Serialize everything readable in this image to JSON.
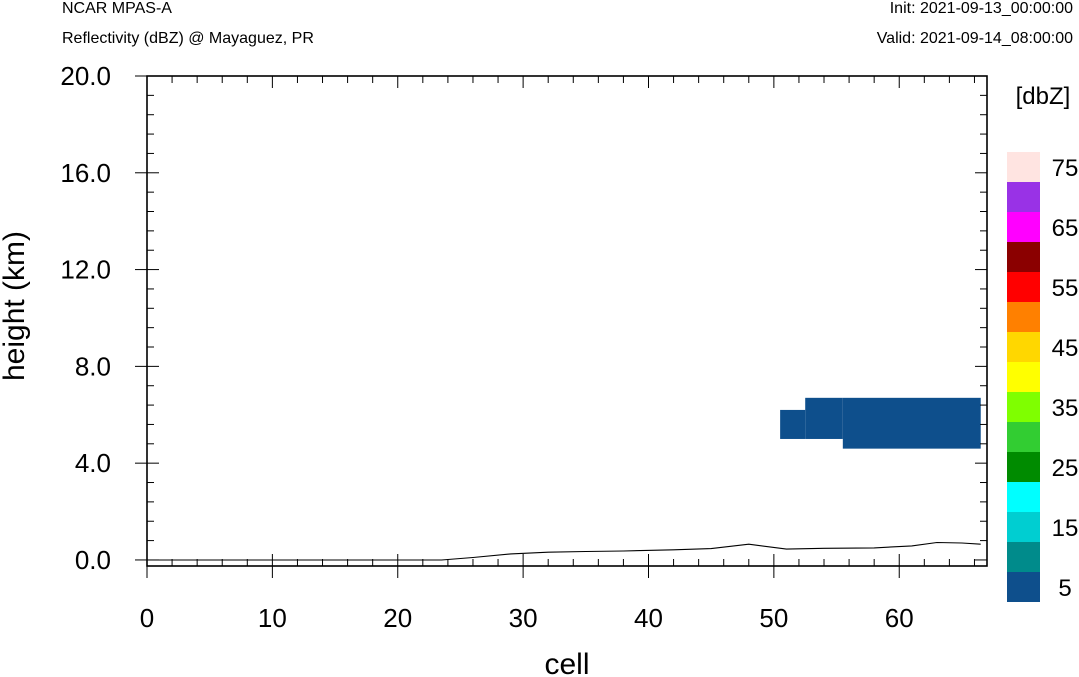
{
  "header": {
    "model": "NCAR MPAS-A",
    "field": "Reflectivity (dBZ) @ Mayaguez, PR",
    "init": "Init: 2021-09-13_00:00:00",
    "valid": "Valid: 2021-09-14_08:00:00"
  },
  "chart_data": {
    "type": "heatmap",
    "xlabel": "cell",
    "ylabel": "height (km)",
    "xlim": [
      0,
      67
    ],
    "ylim": [
      -0.25,
      20.0
    ],
    "xticks": [
      0,
      10,
      20,
      30,
      40,
      50,
      60
    ],
    "yticks": [
      0.0,
      4.0,
      8.0,
      12.0,
      16.0,
      20.0
    ],
    "ytick_labels": [
      "0.0",
      "4.0",
      "8.0",
      "12.0",
      "16.0",
      "20.0"
    ],
    "reflectivity_cells": [
      {
        "x0": 50.5,
        "x1": 52.5,
        "y0": 5.0,
        "y1": 6.2,
        "dbz": 5
      },
      {
        "x0": 52.5,
        "x1": 55.5,
        "y0": 5.0,
        "y1": 6.7,
        "dbz": 5
      },
      {
        "x0": 55.5,
        "x1": 66.5,
        "y0": 4.6,
        "y1": 6.7,
        "dbz": 5
      }
    ],
    "terrain_km": [
      [
        0,
        0.0
      ],
      [
        23.5,
        0.0
      ],
      [
        26,
        0.1
      ],
      [
        29,
        0.25
      ],
      [
        32,
        0.32
      ],
      [
        35,
        0.35
      ],
      [
        38,
        0.37
      ],
      [
        42,
        0.42
      ],
      [
        45,
        0.47
      ],
      [
        48,
        0.65
      ],
      [
        51,
        0.45
      ],
      [
        54,
        0.48
      ],
      [
        58,
        0.5
      ],
      [
        61,
        0.58
      ],
      [
        63,
        0.72
      ],
      [
        65,
        0.7
      ],
      [
        66.5,
        0.65
      ]
    ],
    "colorbar": {
      "unit_label": "[dbZ]",
      "levels": [
        5,
        10,
        15,
        20,
        25,
        30,
        35,
        40,
        45,
        50,
        55,
        60,
        65,
        70,
        75
      ],
      "labels": [
        "5",
        "15",
        "25",
        "35",
        "45",
        "55",
        "65",
        "75"
      ],
      "colors": [
        "#0e4f8c",
        "#008b8b",
        "#00ced1",
        "#00ffff",
        "#008b00",
        "#32cd32",
        "#7fff00",
        "#ffff00",
        "#ffd700",
        "#ff8000",
        "#ff0000",
        "#8b0000",
        "#ff00ff",
        "#9932e6",
        "#ffe4e1"
      ]
    }
  }
}
